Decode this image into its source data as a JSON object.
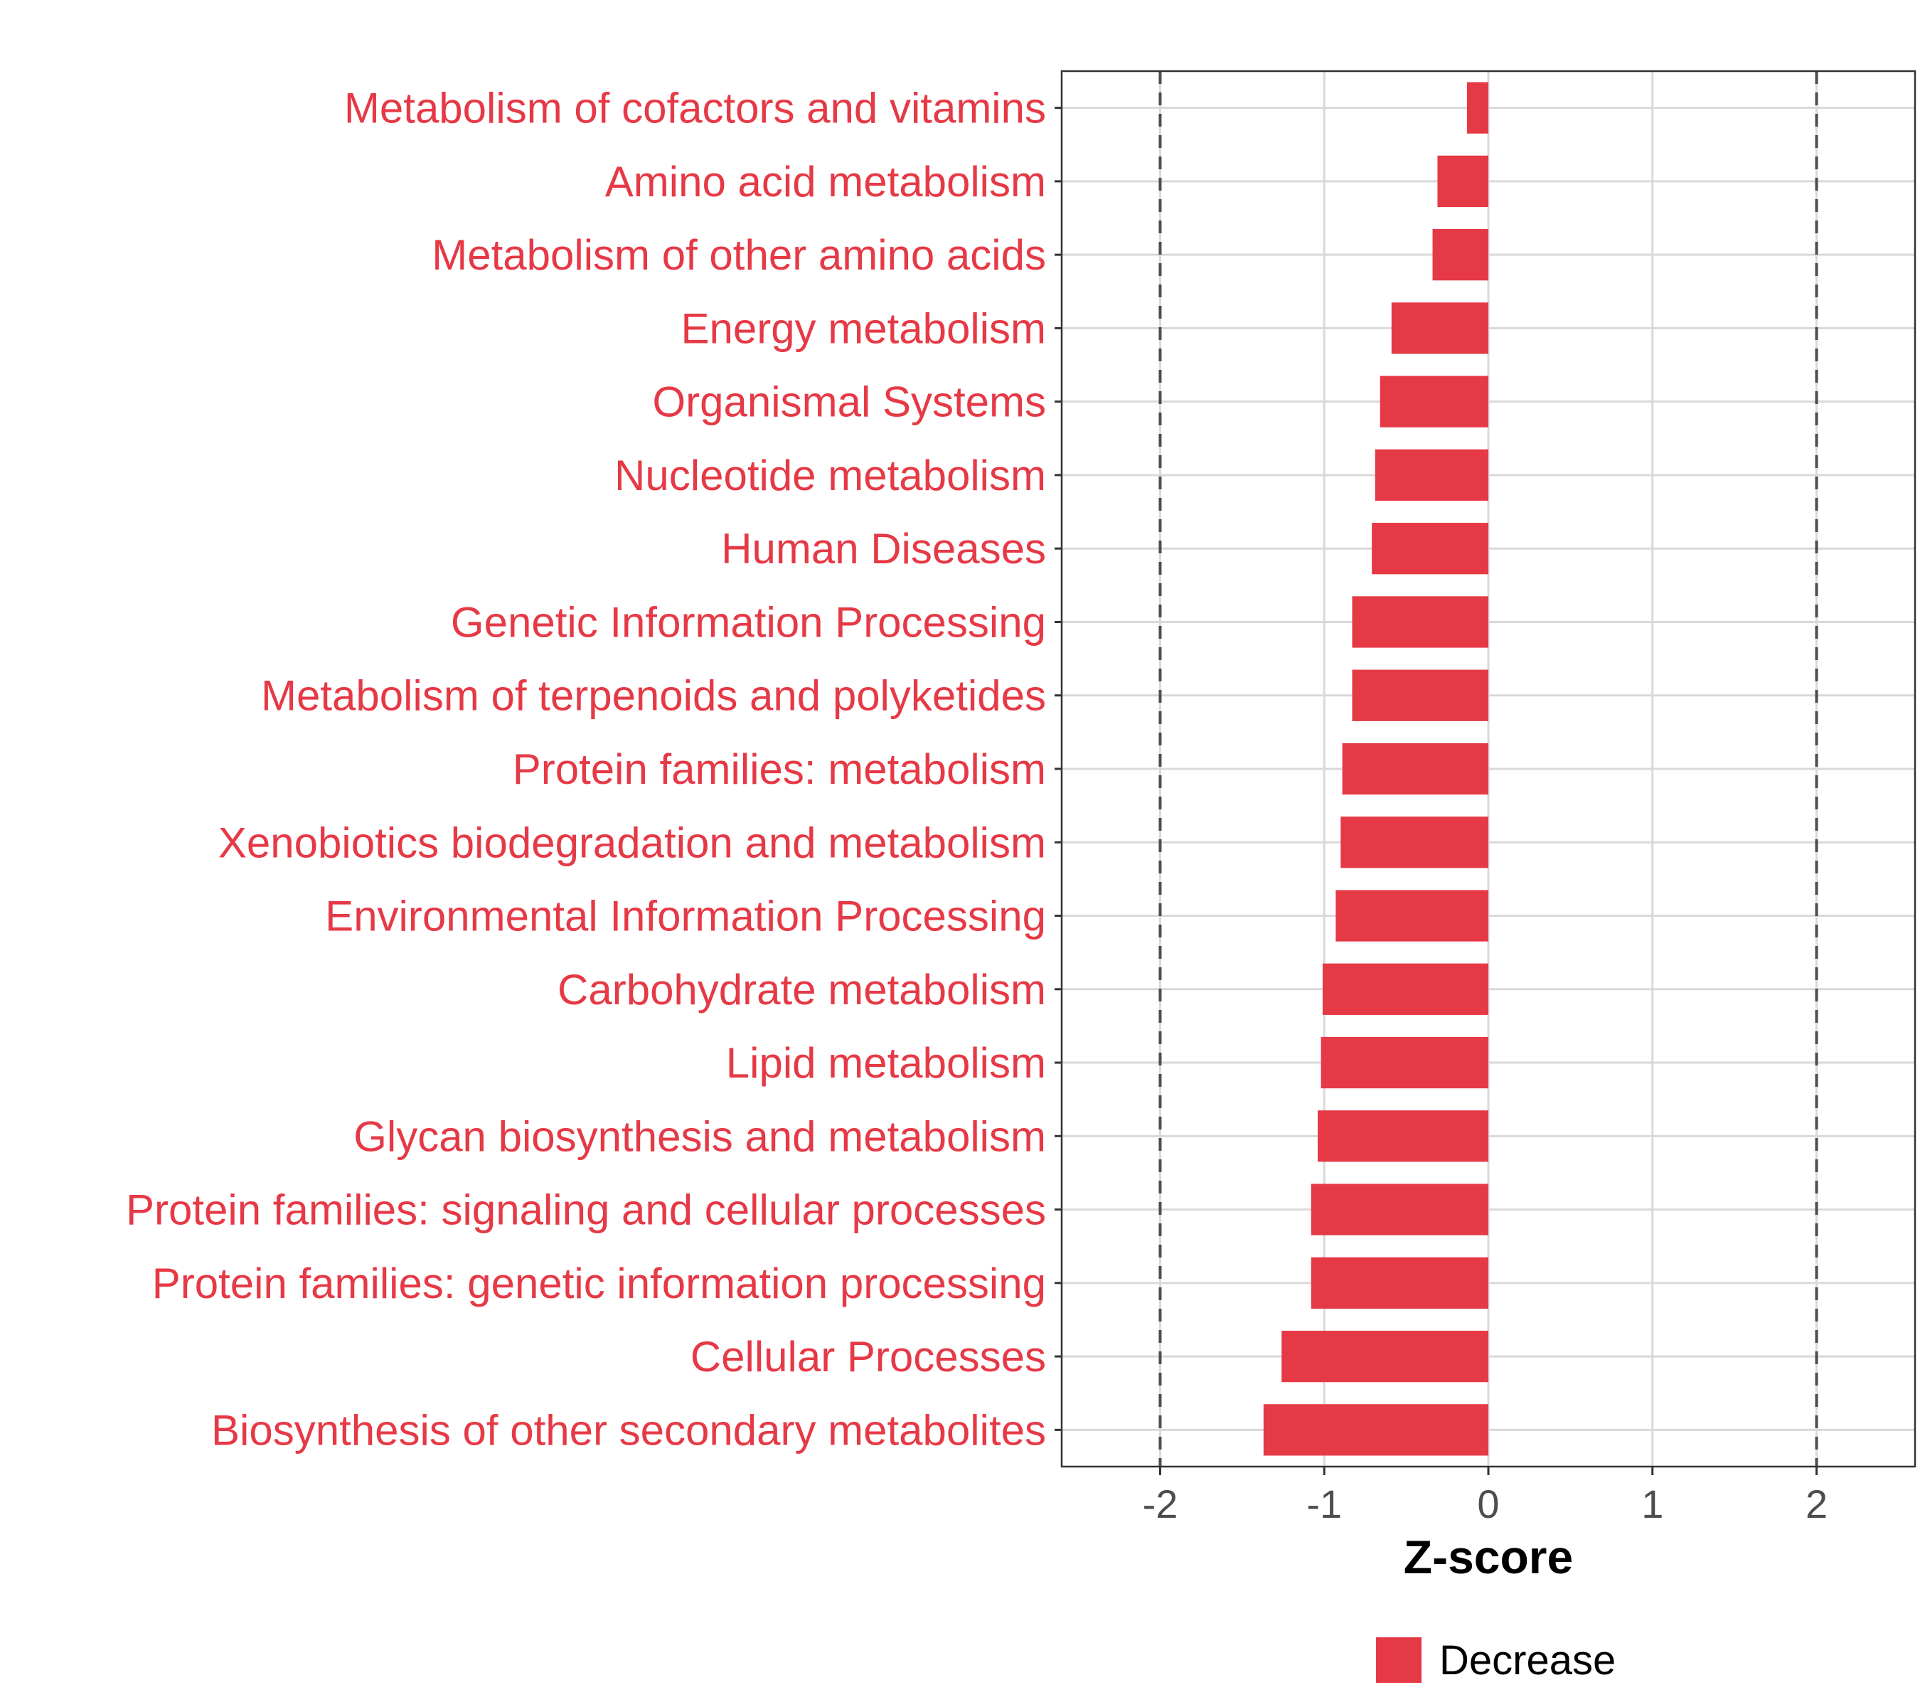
{
  "chart_data": {
    "type": "bar",
    "orientation": "horizontal",
    "categories": [
      "Metabolism of cofactors and vitamins",
      "Amino acid metabolism",
      "Metabolism of other amino acids",
      "Energy metabolism",
      "Organismal Systems",
      "Nucleotide metabolism",
      "Human Diseases",
      "Genetic Information Processing",
      "Metabolism of terpenoids and polyketides",
      "Protein families: metabolism",
      "Xenobiotics biodegradation and metabolism",
      "Environmental Information Processing",
      "Carbohydrate metabolism",
      "Lipid metabolism",
      "Glycan biosynthesis and metabolism",
      "Protein families: signaling and cellular processes",
      "Protein families: genetic information processing",
      "Cellular Processes",
      "Biosynthesis of other secondary metabolites"
    ],
    "values": [
      -0.13,
      -0.31,
      -0.34,
      -0.59,
      -0.66,
      -0.69,
      -0.71,
      -0.83,
      -0.83,
      -0.89,
      -0.9,
      -0.93,
      -1.01,
      -1.02,
      -1.04,
      -1.08,
      -1.08,
      -1.26,
      -1.37
    ],
    "xlabel": "Z-score",
    "xlim": [
      -2.6,
      2.6
    ],
    "xticks": [
      -2,
      -1,
      0,
      1,
      2
    ],
    "xtick_labels": [
      "-2",
      "-1",
      "0",
      "1",
      "2"
    ],
    "reference_lines": [
      -2,
      2
    ],
    "legend": {
      "entries": [
        {
          "label": "Decrease",
          "color": "#E63946"
        }
      ],
      "position": "bottom"
    },
    "colors": {
      "bar": "#E63946",
      "label": "#E63946",
      "grid": "#D9D9D9",
      "refline": "#4D4D4D"
    },
    "grid": true
  }
}
